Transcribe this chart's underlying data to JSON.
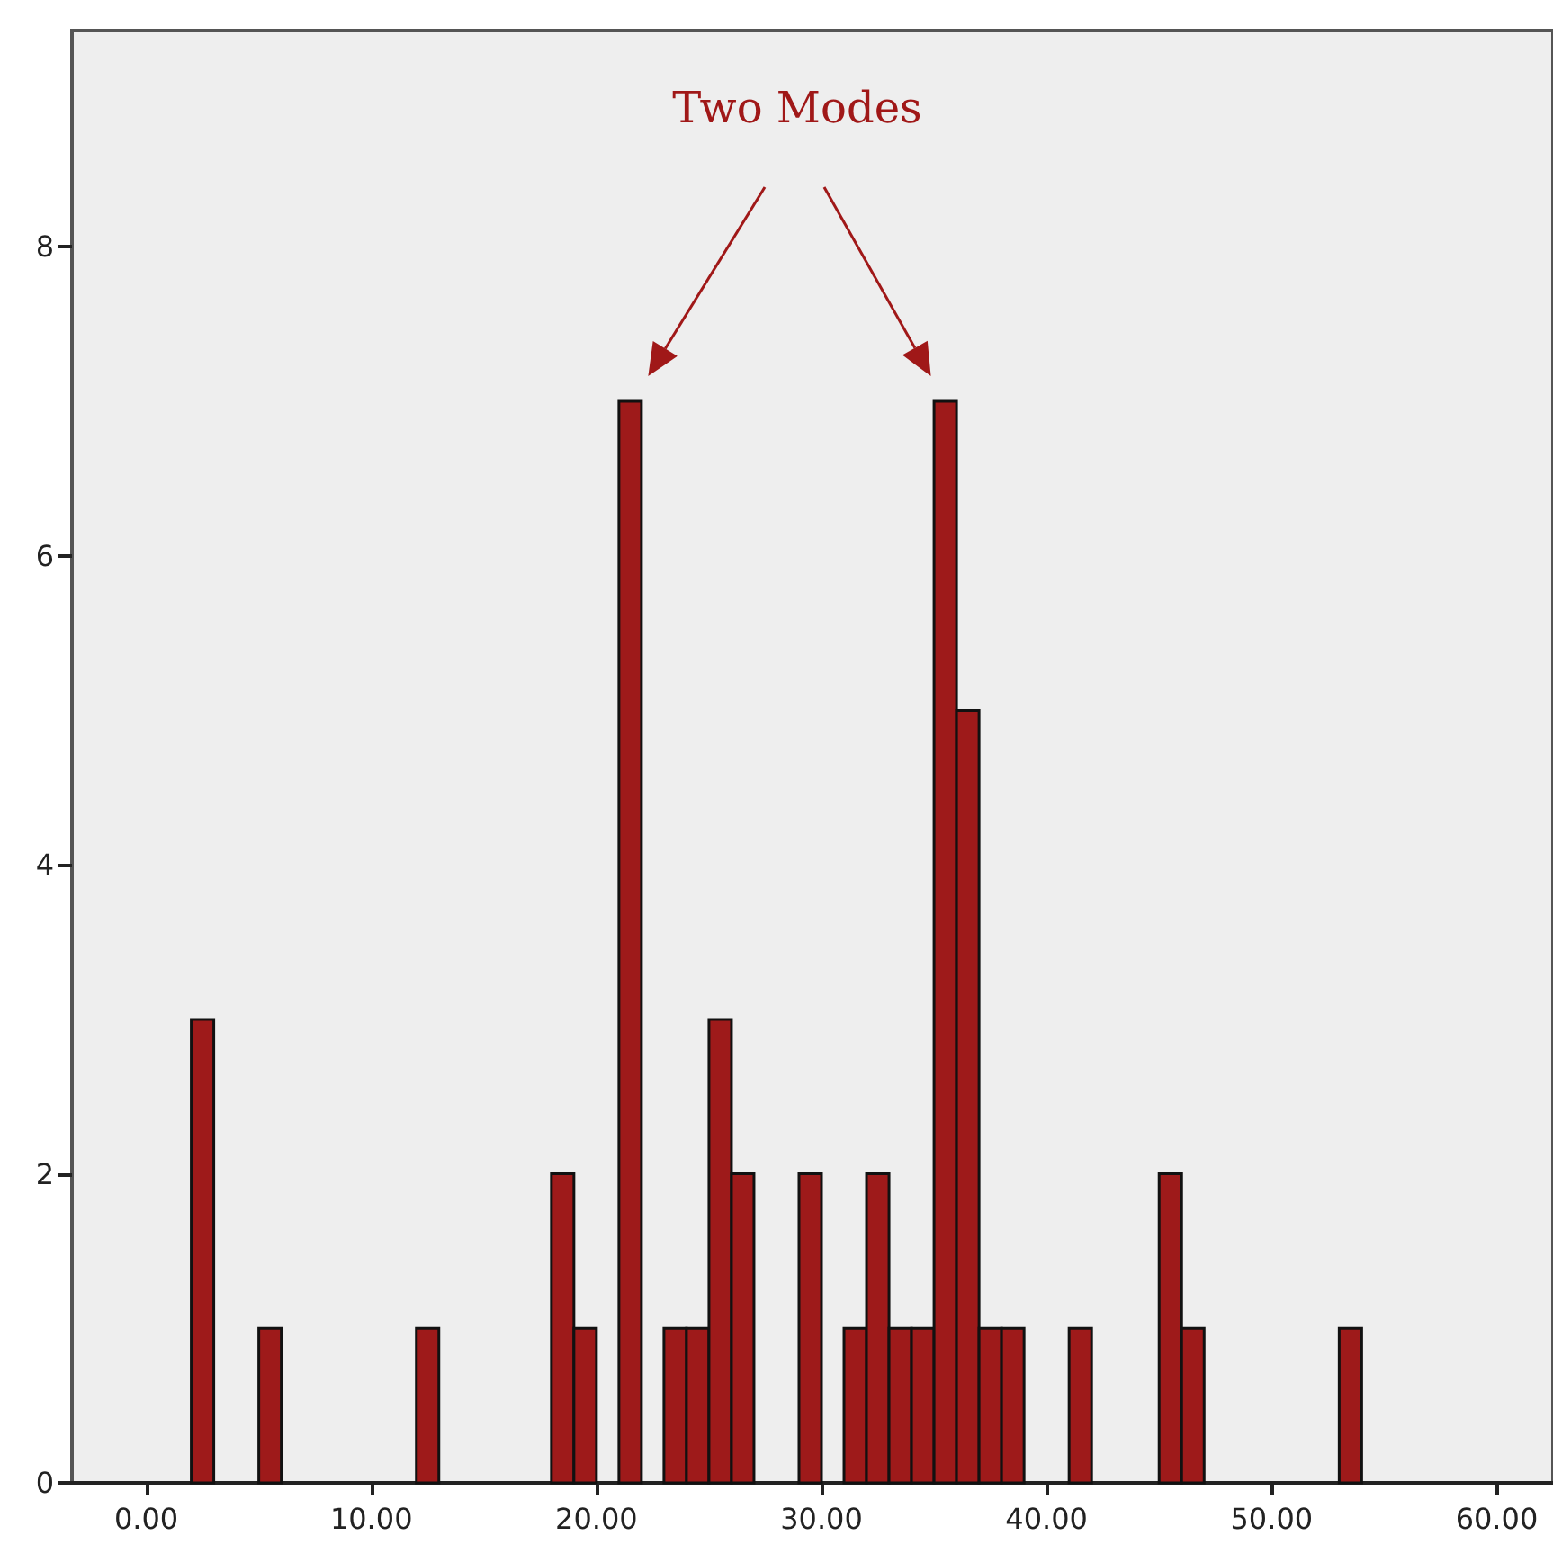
{
  "chart_data": {
    "type": "histogram",
    "bins": [
      2,
      3,
      4,
      5,
      6,
      7,
      8,
      9,
      10,
      11,
      12,
      13,
      14,
      15,
      16,
      17,
      18,
      19,
      20,
      21,
      22,
      23,
      24,
      25,
      26,
      27,
      28,
      29,
      30,
      31,
      32,
      33,
      34,
      35,
      36,
      37,
      38,
      39,
      40,
      41,
      42,
      43,
      44,
      45,
      46,
      47,
      48,
      49,
      50,
      51,
      52,
      53,
      54
    ],
    "values": [
      3,
      0,
      0,
      1,
      0,
      0,
      0,
      0,
      0,
      0,
      1,
      0,
      0,
      0,
      0,
      0,
      2,
      1,
      0,
      7,
      0,
      1,
      1,
      3,
      2,
      0,
      0,
      2,
      0,
      1,
      2,
      1,
      1,
      7,
      5,
      1,
      1,
      0,
      0,
      1,
      0,
      0,
      0,
      2,
      1,
      0,
      0,
      0,
      0,
      0,
      0,
      1
    ],
    "color": "#9e1a1a",
    "xlim": [
      -3.3,
      62.5
    ],
    "xticks": [
      {
        "value": 0,
        "label": "0.00"
      },
      {
        "value": 10,
        "label": "10.00"
      },
      {
        "value": 20,
        "label": "20.00"
      },
      {
        "value": 30,
        "label": "30.00"
      },
      {
        "value": 40,
        "label": "40.00"
      },
      {
        "value": 50,
        "label": "50.00"
      },
      {
        "value": 60,
        "label": "60.00"
      }
    ],
    "ylim": [
      0,
      9.4
    ],
    "yticks": [
      0,
      2,
      4,
      6,
      8
    ],
    "annotations": [
      "Two Modes"
    ]
  }
}
